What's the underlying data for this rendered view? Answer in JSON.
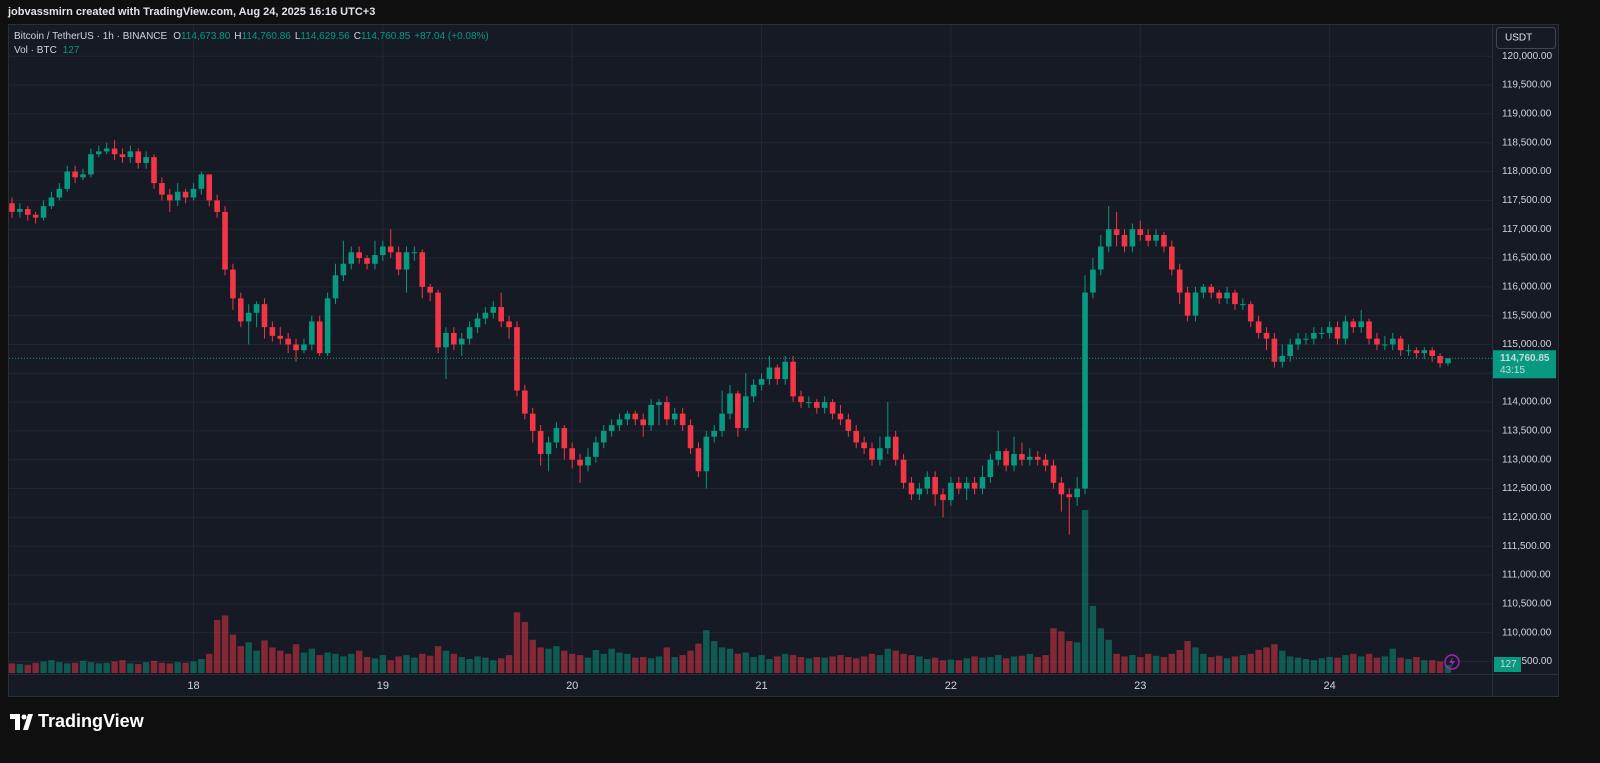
{
  "header": {
    "text": "jobvassmirn created with TradingView.com, Aug 24, 2025 16:16 UTC+3"
  },
  "footer": {
    "logo": "TradingView"
  },
  "chart_data": {
    "type": "candlestick",
    "title": "Bitcoin / TetherUS · 1h · BINANCE",
    "legend": [
      {
        "key": "O",
        "value": "114,673.80"
      },
      {
        "key": "H",
        "value": "114,760.86"
      },
      {
        "key": "L",
        "value": "114,629.56"
      },
      {
        "key": "C",
        "value": "114,760.85"
      }
    ],
    "change": "+87.04 (+0.08%)",
    "volume_title": "Vol · BTC",
    "currency": "USDT",
    "last_price_label": "114,760.85",
    "countdown": "43:15",
    "up_color": "#089981",
    "down_color": "#f23645",
    "grid": true,
    "ylim": [
      109300,
      120560
    ],
    "yticks": [
      {
        "value": 109500,
        "label": "109,500.00"
      },
      {
        "value": 110000,
        "label": "110,000.00"
      },
      {
        "value": 110500,
        "label": "110,500.00"
      },
      {
        "value": 111000,
        "label": "111,000.00"
      },
      {
        "value": 111500,
        "label": "111,500.00"
      },
      {
        "value": 112000,
        "label": "112,000.00"
      },
      {
        "value": 112500,
        "label": "112,500.00"
      },
      {
        "value": 113000,
        "label": "113,000.00"
      },
      {
        "value": 113500,
        "label": "113,500.00"
      },
      {
        "value": 114000,
        "label": "114,000.00"
      },
      {
        "value": 114500,
        "label": "114,500.00"
      },
      {
        "value": 115000,
        "label": "115,000.00"
      },
      {
        "value": 115500,
        "label": "115,500.00"
      },
      {
        "value": 116000,
        "label": "116,000.00"
      },
      {
        "value": 116500,
        "label": "116,500.00"
      },
      {
        "value": 117000,
        "label": "117,000.00"
      },
      {
        "value": 117500,
        "label": "117,500.00"
      },
      {
        "value": 118000,
        "label": "118,000.00"
      },
      {
        "value": 118500,
        "label": "118,500.00"
      },
      {
        "value": 119000,
        "label": "119,000.00"
      },
      {
        "value": 119500,
        "label": "119,500.00"
      },
      {
        "value": 120000,
        "label": "120,000.00"
      }
    ],
    "xticks": [
      {
        "value": 23,
        "label": "18"
      },
      {
        "value": 47,
        "label": "19"
      },
      {
        "value": 71,
        "label": "20"
      },
      {
        "value": 95,
        "label": "21"
      },
      {
        "value": 119,
        "label": "22"
      },
      {
        "value": 143,
        "label": "23"
      },
      {
        "value": 167,
        "label": "24"
      }
    ],
    "open": [
      117450,
      117300,
      117350,
      117250,
      117200,
      117400,
      117550,
      117700,
      118000,
      117900,
      117950,
      118300,
      118350,
      118400,
      118300,
      118250,
      118350,
      118150,
      118250,
      117800,
      117600,
      117500,
      117650,
      117550,
      117700,
      117950,
      117500,
      117300,
      116300,
      115800,
      115400,
      115550,
      115700,
      115300,
      115150,
      115100,
      115000,
      114900,
      115000,
      115400,
      114850,
      115800,
      116200,
      116400,
      116600,
      116500,
      116400,
      116550,
      116700,
      116600,
      116300,
      116600,
      116600,
      116000,
      115900,
      114950,
      115200,
      115000,
      115100,
      115300,
      115450,
      115550,
      115650,
      115400,
      115300,
      114200,
      113800,
      113500,
      113100,
      113300,
      113550,
      113200,
      113000,
      112900,
      113050,
      113300,
      113500,
      113600,
      113700,
      113800,
      113700,
      113600,
      113950,
      114000,
      113700,
      113800,
      113600,
      113200,
      112800,
      113400,
      113500,
      113800,
      114150,
      113550,
      114100,
      114300,
      114400,
      114600,
      114400,
      114700,
      114100,
      114000,
      114000,
      113900,
      114000,
      113800,
      113700,
      113500,
      113300,
      113200,
      113000,
      113200,
      113400,
      113000,
      112600,
      112400,
      112500,
      112700,
      112400,
      112300,
      112600,
      112500,
      112600,
      112500,
      112700,
      113000,
      113150,
      112900,
      113100,
      113000,
      113050,
      113000,
      112900,
      112600,
      112400,
      112350,
      112500,
      115900,
      116300,
      116700,
      117000,
      116900,
      116700,
      117000,
      116900,
      116800,
      116900,
      116700,
      116300,
      115900,
      115500,
      115900,
      116000,
      115900,
      115800,
      115900,
      115700,
      115700,
      115400,
      115200,
      115100,
      114700,
      114800,
      115000,
      115100,
      115100,
      115200,
      115200,
      115300,
      115100,
      115400,
      115300,
      115400,
      115100,
      115000,
      115000,
      115100,
      114900,
      114900,
      114850,
      114900,
      114800,
      114673.8
    ],
    "high": [
      117550,
      117450,
      117400,
      117300,
      117500,
      117650,
      117800,
      118100,
      118100,
      118050,
      118400,
      118450,
      118500,
      118550,
      118400,
      118450,
      118400,
      118350,
      118300,
      117900,
      117700,
      117800,
      117700,
      117800,
      118000,
      117950,
      117600,
      117400,
      116400,
      115900,
      115700,
      115750,
      115800,
      115400,
      115300,
      115200,
      115100,
      115100,
      115500,
      115500,
      115900,
      116400,
      116800,
      116700,
      116700,
      116550,
      116800,
      116800,
      117000,
      116700,
      116700,
      116700,
      116650,
      116050,
      115950,
      115300,
      115300,
      115200,
      115400,
      115550,
      115650,
      115750,
      115900,
      115500,
      115400,
      114300,
      113900,
      113600,
      113400,
      113650,
      113600,
      113300,
      113100,
      113200,
      113400,
      113600,
      113700,
      113800,
      113850,
      113850,
      113800,
      114050,
      114050,
      114100,
      113900,
      113900,
      113700,
      113300,
      113500,
      113600,
      114200,
      114300,
      114200,
      114500,
      114400,
      114500,
      114800,
      114650,
      114800,
      114800,
      114200,
      114100,
      114050,
      114100,
      114050,
      113950,
      113800,
      113600,
      113400,
      113300,
      113400,
      114000,
      113500,
      113100,
      112700,
      112600,
      112800,
      112800,
      112500,
      112700,
      112700,
      112700,
      112700,
      112900,
      113100,
      113500,
      113200,
      113400,
      113300,
      113200,
      113150,
      113100,
      113000,
      112700,
      112500,
      112700,
      116200,
      116500,
      116900,
      117400,
      117300,
      117000,
      117100,
      117150,
      117000,
      117000,
      116950,
      116800,
      116400,
      116000,
      116000,
      116050,
      116050,
      115950,
      116000,
      115950,
      115800,
      115750,
      115500,
      115300,
      115200,
      115000,
      115100,
      115200,
      115200,
      115300,
      115300,
      115400,
      115400,
      115500,
      115450,
      115600,
      115450,
      115200,
      115150,
      115200,
      115150,
      115000,
      114950,
      114950,
      114950,
      114850,
      114760.86
    ],
    "low": [
      117200,
      117200,
      117150,
      117100,
      117150,
      117350,
      117500,
      117650,
      117800,
      117850,
      117900,
      118250,
      118300,
      118200,
      118150,
      118150,
      118050,
      118050,
      117700,
      117500,
      117300,
      117400,
      117450,
      117500,
      117600,
      117400,
      117200,
      116200,
      115600,
      115300,
      115000,
      115300,
      115100,
      115050,
      115000,
      114850,
      114700,
      114850,
      114900,
      114800,
      114800,
      115700,
      116100,
      116300,
      116400,
      116300,
      116300,
      116450,
      116500,
      116200,
      115900,
      116450,
      115800,
      115750,
      114850,
      114400,
      114900,
      114800,
      115000,
      115200,
      115350,
      115450,
      115300,
      115100,
      114100,
      113700,
      113300,
      112900,
      112800,
      113200,
      113000,
      112850,
      112600,
      112800,
      112950,
      113200,
      113400,
      113500,
      113600,
      113600,
      113400,
      113500,
      113600,
      113600,
      113600,
      113500,
      113100,
      112700,
      112500,
      113300,
      113400,
      113700,
      113400,
      113500,
      114000,
      114200,
      114300,
      114300,
      114300,
      114000,
      113900,
      113900,
      113800,
      113800,
      113700,
      113600,
      113400,
      113200,
      113100,
      112900,
      112900,
      113100,
      112900,
      112500,
      112300,
      112300,
      112400,
      112200,
      112000,
      112200,
      112400,
      112300,
      112400,
      112400,
      112600,
      112900,
      112800,
      112800,
      112900,
      112900,
      112900,
      112800,
      112500,
      112100,
      111700,
      112200,
      112400,
      115800,
      116200,
      116600,
      116700,
      116600,
      116600,
      116800,
      116700,
      116700,
      116600,
      116200,
      115700,
      115400,
      115400,
      115800,
      115800,
      115700,
      115700,
      115600,
      115600,
      115300,
      115100,
      114900,
      114600,
      114600,
      114700,
      114900,
      115000,
      115000,
      115100,
      115100,
      115000,
      115000,
      115200,
      115200,
      115000,
      114900,
      114900,
      114900,
      114800,
      114800,
      114750,
      114750,
      114700,
      114600,
      114629.56
    ],
    "close": [
      117300,
      117350,
      117250,
      117200,
      117400,
      117550,
      117700,
      118000,
      117900,
      117950,
      118300,
      118350,
      118400,
      118300,
      118250,
      118350,
      118150,
      118250,
      117800,
      117600,
      117500,
      117650,
      117550,
      117700,
      117950,
      117500,
      117300,
      116300,
      115800,
      115400,
      115550,
      115700,
      115300,
      115150,
      115100,
      115000,
      114900,
      115000,
      115400,
      114850,
      115800,
      116200,
      116400,
      116600,
      116500,
      116400,
      116550,
      116700,
      116600,
      116300,
      116600,
      116600,
      116000,
      115900,
      114950,
      115200,
      115000,
      115100,
      115300,
      115450,
      115550,
      115650,
      115400,
      115300,
      114200,
      113800,
      113500,
      113100,
      113300,
      113550,
      113200,
      113000,
      112900,
      113050,
      113300,
      113500,
      113600,
      113700,
      113800,
      113700,
      113600,
      113950,
      114000,
      113700,
      113800,
      113600,
      113200,
      112800,
      113400,
      113500,
      113800,
      114150,
      113550,
      114100,
      114300,
      114400,
      114600,
      114400,
      114700,
      114100,
      114000,
      114000,
      113900,
      114000,
      113800,
      113700,
      113500,
      113300,
      113200,
      113000,
      113200,
      113400,
      113000,
      112600,
      112400,
      112500,
      112700,
      112400,
      112300,
      112600,
      112500,
      112600,
      112500,
      112700,
      113000,
      113150,
      112900,
      113100,
      113000,
      113050,
      113000,
      112900,
      112600,
      112400,
      112350,
      112500,
      115900,
      116300,
      116700,
      117000,
      116900,
      116700,
      117000,
      116900,
      116800,
      116900,
      116700,
      116300,
      115900,
      115500,
      115900,
      116000,
      115900,
      115800,
      115900,
      115700,
      115700,
      115400,
      115200,
      115100,
      114700,
      114800,
      115000,
      115100,
      115100,
      115200,
      115200,
      115300,
      115100,
      115400,
      115300,
      115400,
      115100,
      115000,
      115000,
      115100,
      114900,
      114900,
      114850,
      114900,
      114800,
      114673.8,
      114760.85
    ],
    "volume": [
      150,
      140,
      130,
      160,
      180,
      200,
      170,
      150,
      160,
      190,
      170,
      150,
      160,
      180,
      200,
      150,
      140,
      170,
      190,
      160,
      150,
      170,
      160,
      180,
      220,
      300,
      830,
      900,
      600,
      420,
      480,
      350,
      510,
      400,
      350,
      300,
      450,
      320,
      380,
      280,
      320,
      300,
      260,
      300,
      350,
      250,
      230,
      280,
      200,
      260,
      280,
      240,
      300,
      270,
      420,
      350,
      300,
      250,
      220,
      260,
      240,
      200,
      230,
      280,
      950,
      800,
      520,
      400,
      380,
      420,
      350,
      300,
      280,
      240,
      360,
      300,
      380,
      320,
      300,
      240,
      250,
      230,
      260,
      400,
      250,
      280,
      350,
      460,
      670,
      500,
      400,
      380,
      300,
      320,
      250,
      280,
      220,
      260,
      300,
      280,
      250,
      230,
      250,
      240,
      260,
      280,
      250,
      230,
      260,
      300,
      280,
      380,
      350,
      300,
      280,
      260,
      220,
      240,
      200,
      210,
      200,
      230,
      260,
      240,
      250,
      280,
      230,
      260,
      270,
      300,
      250,
      280,
      700,
      650,
      500,
      480,
      2550,
      1050,
      700,
      520,
      300,
      260,
      280,
      250,
      300,
      270,
      250,
      300,
      360,
      500,
      400,
      300,
      250,
      270,
      230,
      260,
      280,
      300,
      360,
      400,
      450,
      350,
      260,
      240,
      220,
      200,
      230,
      250,
      240,
      280,
      300,
      260,
      300,
      240,
      260,
      380,
      240,
      220,
      250,
      200,
      200,
      180,
      127
    ]
  }
}
